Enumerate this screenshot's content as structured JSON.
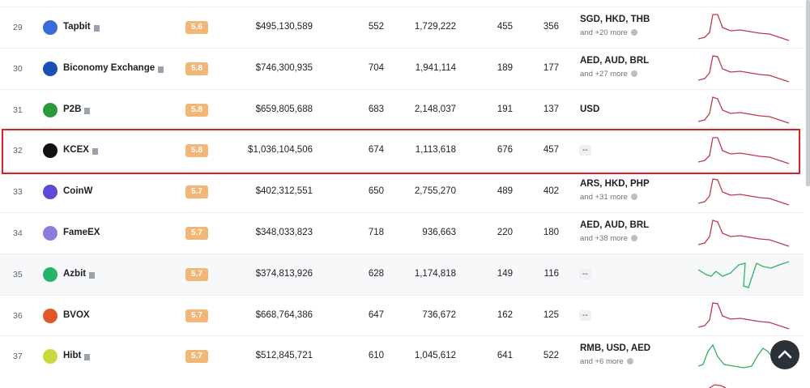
{
  "table": {
    "rows": [
      {
        "rank": "29",
        "name": "Tapbit",
        "score": "5.6",
        "volume": "$495,130,589",
        "c1": "552",
        "c2": "1,729,222",
        "c3": "455",
        "c4": "356",
        "currencies": "SGD, HKD, THB",
        "more": "and +20 more",
        "sparkline_color": "#c0394b"
      },
      {
        "rank": "30",
        "name": "Biconomy Exchange",
        "score": "5.8",
        "volume": "$746,300,935",
        "c1": "704",
        "c2": "1,941,114",
        "c3": "189",
        "c4": "177",
        "currencies": "AED, AUD, BRL",
        "more": "and +27 more",
        "sparkline_color": "#c0394b"
      },
      {
        "rank": "31",
        "name": "P2B",
        "score": "5.8",
        "volume": "$659,805,688",
        "c1": "683",
        "c2": "2,148,037",
        "c3": "191",
        "c4": "137",
        "currencies": "USD",
        "sparkline_color": "#c0394b"
      },
      {
        "rank": "32",
        "name": "KCEX",
        "score": "5.8",
        "volume": "$1,036,104,506",
        "c1": "674",
        "c2": "1,113,618",
        "c3": "676",
        "c4": "457",
        "currencies": "--",
        "sparkline_color": "#c0394b"
      },
      {
        "rank": "33",
        "name": "CoinW",
        "score": "5.7",
        "volume": "$402,312,551",
        "c1": "650",
        "c2": "2,755,270",
        "c3": "489",
        "c4": "402",
        "currencies": "ARS, HKD, PHP",
        "more": "and +31 more",
        "sparkline_color": "#c0394b"
      },
      {
        "rank": "34",
        "name": "FameEX",
        "score": "5.7",
        "volume": "$348,033,823",
        "c1": "718",
        "c2": "936,663",
        "c3": "220",
        "c4": "180",
        "currencies": "AED, AUD, BRL",
        "more": "and +38 more",
        "sparkline_color": "#c0394b"
      },
      {
        "rank": "35",
        "name": "Azbit",
        "score": "5.7",
        "volume": "$374,813,926",
        "c1": "628",
        "c2": "1,174,818",
        "c3": "149",
        "c4": "116",
        "currencies": "--",
        "sparkline_color": "#2fb35b"
      },
      {
        "rank": "36",
        "name": "BVOX",
        "score": "5.7",
        "volume": "$668,764,386",
        "c1": "647",
        "c2": "736,672",
        "c3": "162",
        "c4": "125",
        "currencies": "--",
        "sparkline_color": "#c0394b"
      },
      {
        "rank": "37",
        "name": "Hibt",
        "score": "5.7",
        "volume": "$512,845,721",
        "c1": "610",
        "c2": "1,045,612",
        "c3": "641",
        "c4": "522",
        "currencies": "RMB, USD, AED",
        "more": "and +6 more",
        "sparkline_color": "#2fb35b"
      }
    ]
  }
}
